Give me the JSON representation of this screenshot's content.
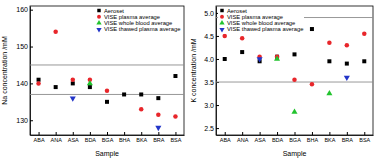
{
  "chart_data": [
    {
      "type": "scatter",
      "x_label": "Sample",
      "y_label": "Na concentration /mM",
      "categories": [
        "ABA",
        "ANA",
        "ASA",
        "BDA",
        "BGA",
        "BHA",
        "BKA",
        "BRA",
        "BSA"
      ],
      "ylim": [
        126,
        161
      ],
      "yticks": [
        130,
        140,
        150,
        160
      ],
      "reference_lines": [
        137,
        145
      ],
      "legend": "upper right",
      "series": [
        {
          "name": "Aeroset",
          "color": "#000000",
          "marker": "square",
          "values": [
            141,
            139,
            140,
            139,
            135,
            137,
            137,
            136,
            142
          ]
        },
        {
          "name": "VISE plasma average",
          "color": "#e8262b",
          "marker": "circle",
          "values": [
            140,
            154,
            141,
            141,
            138,
            null,
            133,
            131.5,
            131
          ]
        },
        {
          "name": "VISE whole blood average",
          "color": "#22c32e",
          "marker": "triangle-up",
          "values": [
            null,
            null,
            null,
            140,
            null,
            null,
            null,
            null,
            null
          ]
        },
        {
          "name": "VISE thawed plasma average",
          "color": "#2335c8",
          "marker": "triangle-down",
          "values": [
            null,
            null,
            136,
            null,
            null,
            null,
            null,
            128,
            null
          ]
        }
      ]
    },
    {
      "type": "scatter",
      "x_label": "Sample",
      "y_label": "K concentration /mM",
      "categories": [
        "ABA",
        "ANA",
        "ASA",
        "BDA",
        "BGA",
        "BHA",
        "BKA",
        "BRA",
        "BSA"
      ],
      "ylim": [
        2.35,
        5.15
      ],
      "yticks": [
        2.5,
        {
          "value": 3,
          "label": "3.0"
        },
        3.5,
        {
          "value": 4,
          "label": "4.0"
        },
        4.5,
        {
          "value": 5,
          "label": "5.0"
        }
      ],
      "reference_lines": [
        3.5,
        4.9
      ],
      "legend": "upper left",
      "series": [
        {
          "name": "Aeroset",
          "color": "#000000",
          "marker": "square",
          "values": [
            4.0,
            4.15,
            3.95,
            4.05,
            4.1,
            4.65,
            3.95,
            3.9,
            3.95
          ]
        },
        {
          "name": "VISE plasma average",
          "color": "#e8262b",
          "marker": "circle",
          "values": [
            4.5,
            4.45,
            4.05,
            4.05,
            3.55,
            3.45,
            4.35,
            4.3,
            4.55
          ]
        },
        {
          "name": "VISE whole blood average",
          "color": "#22c32e",
          "marker": "triangle-up",
          "values": [
            null,
            null,
            null,
            4.0,
            2.85,
            null,
            3.25,
            null,
            null
          ]
        },
        {
          "name": "VISE thawed plasma average",
          "color": "#2335c8",
          "marker": "triangle-down",
          "values": [
            null,
            null,
            4.0,
            null,
            null,
            null,
            null,
            3.6,
            null
          ]
        }
      ]
    }
  ]
}
